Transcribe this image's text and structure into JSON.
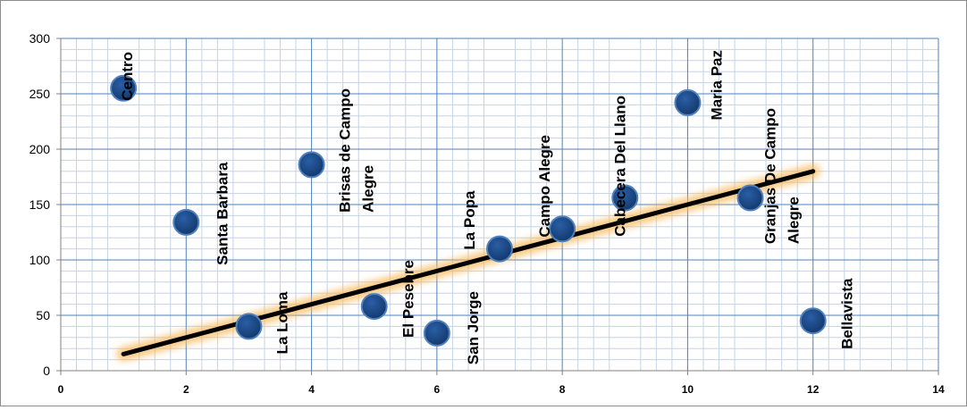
{
  "chart_data": {
    "type": "scatter",
    "title": "",
    "xlabel": "",
    "ylabel": "",
    "xlim": [
      0,
      14
    ],
    "ylim": [
      0,
      300
    ],
    "x_ticks": [
      "0",
      "2",
      "4",
      "6",
      "8",
      "10",
      "12",
      "14"
    ],
    "y_ticks": [
      "0",
      "50",
      "100",
      "150",
      "200",
      "250",
      "300"
    ],
    "grid": true,
    "legend": "none",
    "colors": {
      "marker": "#1f4e8c",
      "marker_edge": "#4f81bd",
      "trendline": "#000000",
      "trendline_glow": "#f8b95a",
      "grid_major": "#4f81bd",
      "grid_minor": "#c5d3e6"
    },
    "points": [
      {
        "name": "Centro",
        "x": 1,
        "y": 255
      },
      {
        "name": "Santa Barbara",
        "x": 2,
        "y": 134
      },
      {
        "name": "La Loma",
        "x": 3,
        "y": 40
      },
      {
        "name": "Brisas de Campo Alegre",
        "x": 4,
        "y": 186
      },
      {
        "name": "El Pesebre",
        "x": 5,
        "y": 58
      },
      {
        "name": "San Jorge",
        "x": 6,
        "y": 34
      },
      {
        "name": "La Popa",
        "x": 7,
        "y": 110
      },
      {
        "name": "Campo Alegre",
        "x": 8,
        "y": 128
      },
      {
        "name": "Cabecera Del Llano",
        "x": 9,
        "y": 156
      },
      {
        "name": "Maria Paz",
        "x": 10,
        "y": 242
      },
      {
        "name": "Granjas De Campo Alegre",
        "x": 11,
        "y": 156
      },
      {
        "name": "Bellavista",
        "x": 12,
        "y": 45
      }
    ],
    "trendline": {
      "type": "linear",
      "x": [
        1,
        12
      ],
      "y": [
        15,
        180
      ]
    }
  }
}
